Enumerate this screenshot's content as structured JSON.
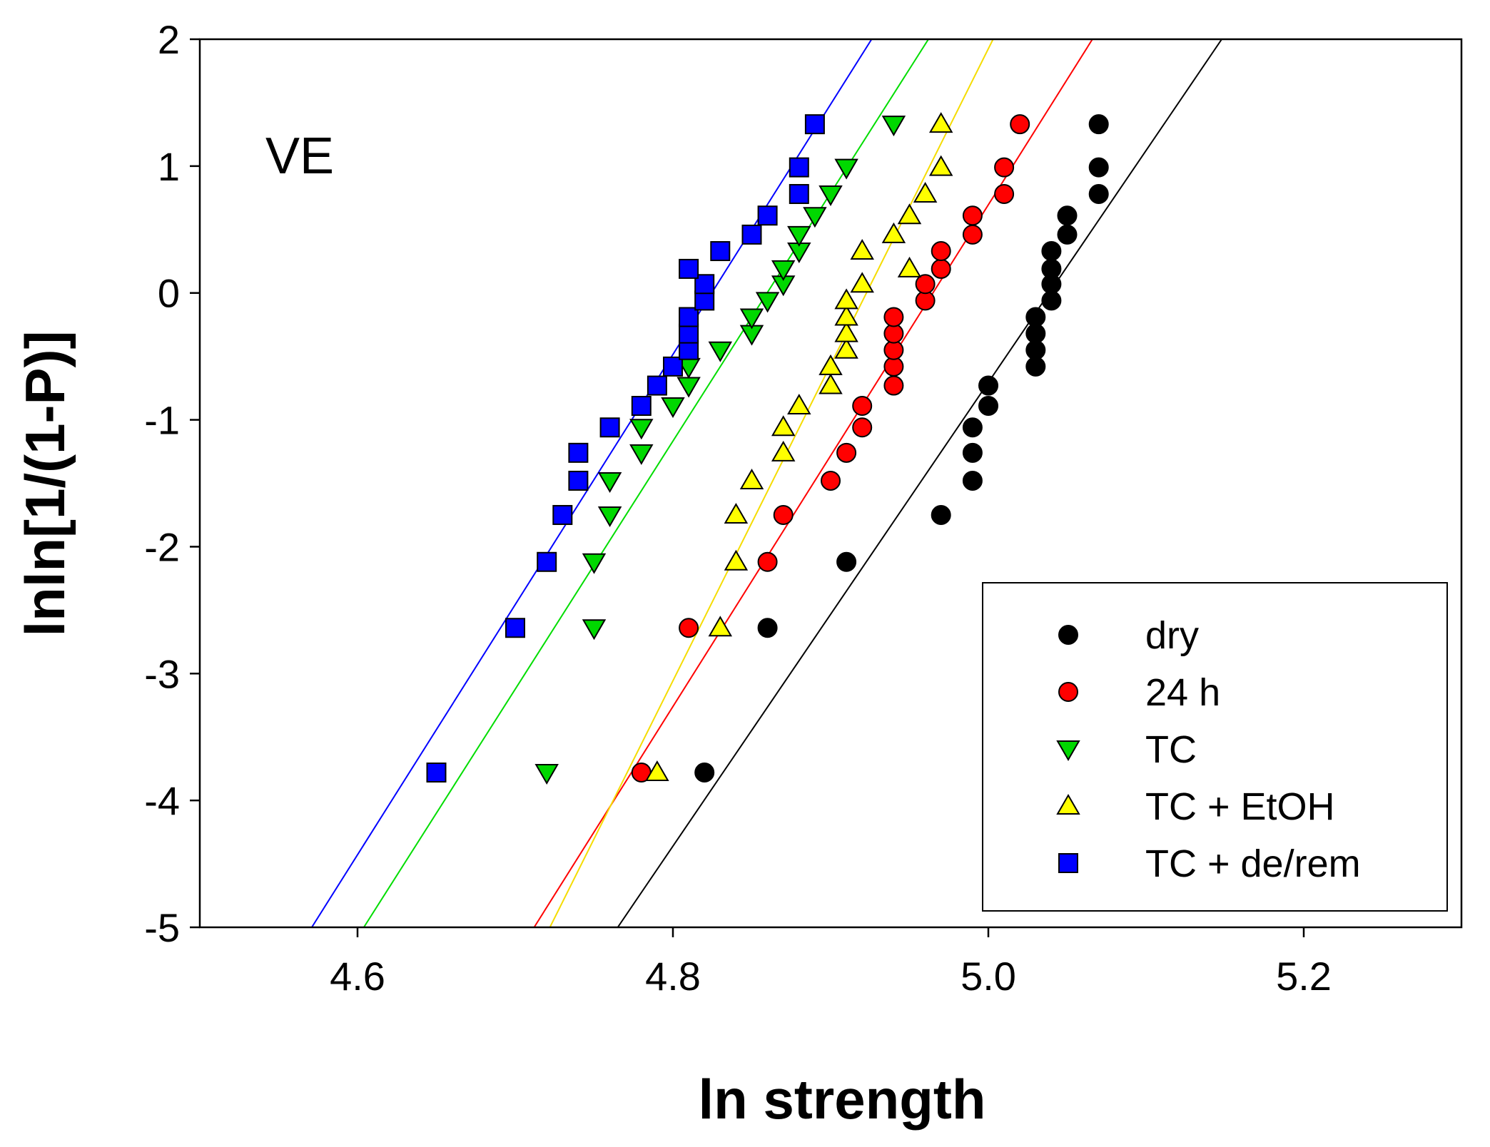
{
  "chart_data": {
    "type": "scatter",
    "title": "",
    "panel_label": "VE",
    "xlabel": "ln strength",
    "ylabel": "lnln[1/(1-P)]",
    "xlim": [
      4.5,
      5.3
    ],
    "ylim": [
      -5,
      2
    ],
    "xticks": [
      4.6,
      4.8,
      5.0,
      5.2
    ],
    "xtick_labels": [
      "4.6",
      "4.8",
      "5.0",
      "5.2"
    ],
    "yticks": [
      -5,
      -4,
      -3,
      -2,
      -1,
      0,
      1,
      2
    ],
    "ytick_labels": [
      "-5",
      "-4",
      "-3",
      "-2",
      "-1",
      "0",
      "1",
      "2"
    ],
    "grid": false,
    "legend_position": "bottom-right",
    "series": [
      {
        "name": "dry",
        "marker": "circle",
        "color": "#000000",
        "line_color": "#000000",
        "fit": {
          "x1": 4.765,
          "y1": -5,
          "x2": 5.148,
          "y2": 2
        },
        "points": [
          [
            4.82,
            -3.78
          ],
          [
            4.86,
            -2.64
          ],
          [
            4.91,
            -2.12
          ],
          [
            4.97,
            -1.75
          ],
          [
            4.99,
            -1.48
          ],
          [
            4.99,
            -1.26
          ],
          [
            4.99,
            -1.06
          ],
          [
            5.0,
            -0.89
          ],
          [
            5.0,
            -0.73
          ],
          [
            5.03,
            -0.58
          ],
          [
            5.03,
            -0.45
          ],
          [
            5.03,
            -0.32
          ],
          [
            5.03,
            -0.19
          ],
          [
            5.04,
            -0.06
          ],
          [
            5.04,
            0.07
          ],
          [
            5.04,
            0.19
          ],
          [
            5.04,
            0.33
          ],
          [
            5.05,
            0.46
          ],
          [
            5.05,
            0.61
          ],
          [
            5.07,
            0.78
          ],
          [
            5.07,
            0.99
          ],
          [
            5.07,
            1.33
          ]
        ]
      },
      {
        "name": "24 h",
        "marker": "circle",
        "color": "#ff0000",
        "line_color": "#ff0000",
        "fit": {
          "x1": 4.712,
          "y1": -5,
          "x2": 5.066,
          "y2": 2
        },
        "points": [
          [
            4.78,
            -3.78
          ],
          [
            4.81,
            -2.64
          ],
          [
            4.86,
            -2.12
          ],
          [
            4.87,
            -1.75
          ],
          [
            4.9,
            -1.48
          ],
          [
            4.91,
            -1.26
          ],
          [
            4.92,
            -1.06
          ],
          [
            4.92,
            -0.89
          ],
          [
            4.94,
            -0.73
          ],
          [
            4.94,
            -0.58
          ],
          [
            4.94,
            -0.45
          ],
          [
            4.94,
            -0.32
          ],
          [
            4.94,
            -0.19
          ],
          [
            4.96,
            -0.06
          ],
          [
            4.96,
            0.07
          ],
          [
            4.97,
            0.19
          ],
          [
            4.97,
            0.33
          ],
          [
            4.99,
            0.46
          ],
          [
            4.99,
            0.61
          ],
          [
            5.01,
            0.78
          ],
          [
            5.01,
            0.99
          ],
          [
            5.02,
            1.33
          ]
        ]
      },
      {
        "name": "TC",
        "marker": "triangle-down",
        "color": "#00d800",
        "line_color": "#00dd00",
        "fit": {
          "x1": 4.604,
          "y1": -5,
          "x2": 4.962,
          "y2": 2
        },
        "points": [
          [
            4.72,
            -3.78
          ],
          [
            4.75,
            -2.64
          ],
          [
            4.75,
            -2.12
          ],
          [
            4.76,
            -1.75
          ],
          [
            4.76,
            -1.48
          ],
          [
            4.78,
            -1.26
          ],
          [
            4.78,
            -1.06
          ],
          [
            4.8,
            -0.89
          ],
          [
            4.81,
            -0.73
          ],
          [
            4.81,
            -0.58
          ],
          [
            4.83,
            -0.45
          ],
          [
            4.85,
            -0.32
          ],
          [
            4.85,
            -0.19
          ],
          [
            4.86,
            -0.06
          ],
          [
            4.87,
            0.07
          ],
          [
            4.87,
            0.19
          ],
          [
            4.88,
            0.33
          ],
          [
            4.88,
            0.46
          ],
          [
            4.89,
            0.61
          ],
          [
            4.9,
            0.78
          ],
          [
            4.91,
            0.99
          ],
          [
            4.94,
            1.33
          ]
        ]
      },
      {
        "name": "TC + EtOH",
        "marker": "triangle-up",
        "color": "#ffff00",
        "line_color": "#f5dc00",
        "fit": {
          "x1": 4.722,
          "y1": -5,
          "x2": 5.003,
          "y2": 2
        },
        "points": [
          [
            4.79,
            -3.78
          ],
          [
            4.83,
            -2.64
          ],
          [
            4.84,
            -2.12
          ],
          [
            4.84,
            -1.75
          ],
          [
            4.85,
            -1.48
          ],
          [
            4.87,
            -1.26
          ],
          [
            4.87,
            -1.06
          ],
          [
            4.88,
            -0.89
          ],
          [
            4.9,
            -0.73
          ],
          [
            4.9,
            -0.58
          ],
          [
            4.91,
            -0.45
          ],
          [
            4.91,
            -0.32
          ],
          [
            4.91,
            -0.19
          ],
          [
            4.91,
            -0.06
          ],
          [
            4.92,
            0.07
          ],
          [
            4.95,
            0.19
          ],
          [
            4.92,
            0.33
          ],
          [
            4.94,
            0.46
          ],
          [
            4.95,
            0.61
          ],
          [
            4.96,
            0.78
          ],
          [
            4.97,
            0.99
          ],
          [
            4.97,
            1.33
          ]
        ]
      },
      {
        "name": "TC + de/rem",
        "marker": "square",
        "color": "#0000ff",
        "line_color": "#0000ff",
        "fit": {
          "x1": 4.571,
          "y1": -5,
          "x2": 4.926,
          "y2": 2
        },
        "points": [
          [
            4.65,
            -3.78
          ],
          [
            4.7,
            -2.64
          ],
          [
            4.72,
            -2.12
          ],
          [
            4.73,
            -1.75
          ],
          [
            4.74,
            -1.48
          ],
          [
            4.74,
            -1.26
          ],
          [
            4.76,
            -1.06
          ],
          [
            4.78,
            -0.89
          ],
          [
            4.79,
            -0.73
          ],
          [
            4.8,
            -0.58
          ],
          [
            4.81,
            -0.45
          ],
          [
            4.81,
            -0.32
          ],
          [
            4.81,
            -0.19
          ],
          [
            4.82,
            -0.06
          ],
          [
            4.82,
            0.07
          ],
          [
            4.81,
            0.19
          ],
          [
            4.83,
            0.33
          ],
          [
            4.85,
            0.46
          ],
          [
            4.86,
            0.61
          ],
          [
            4.88,
            0.78
          ],
          [
            4.88,
            0.99
          ],
          [
            4.89,
            1.33
          ]
        ]
      }
    ]
  }
}
